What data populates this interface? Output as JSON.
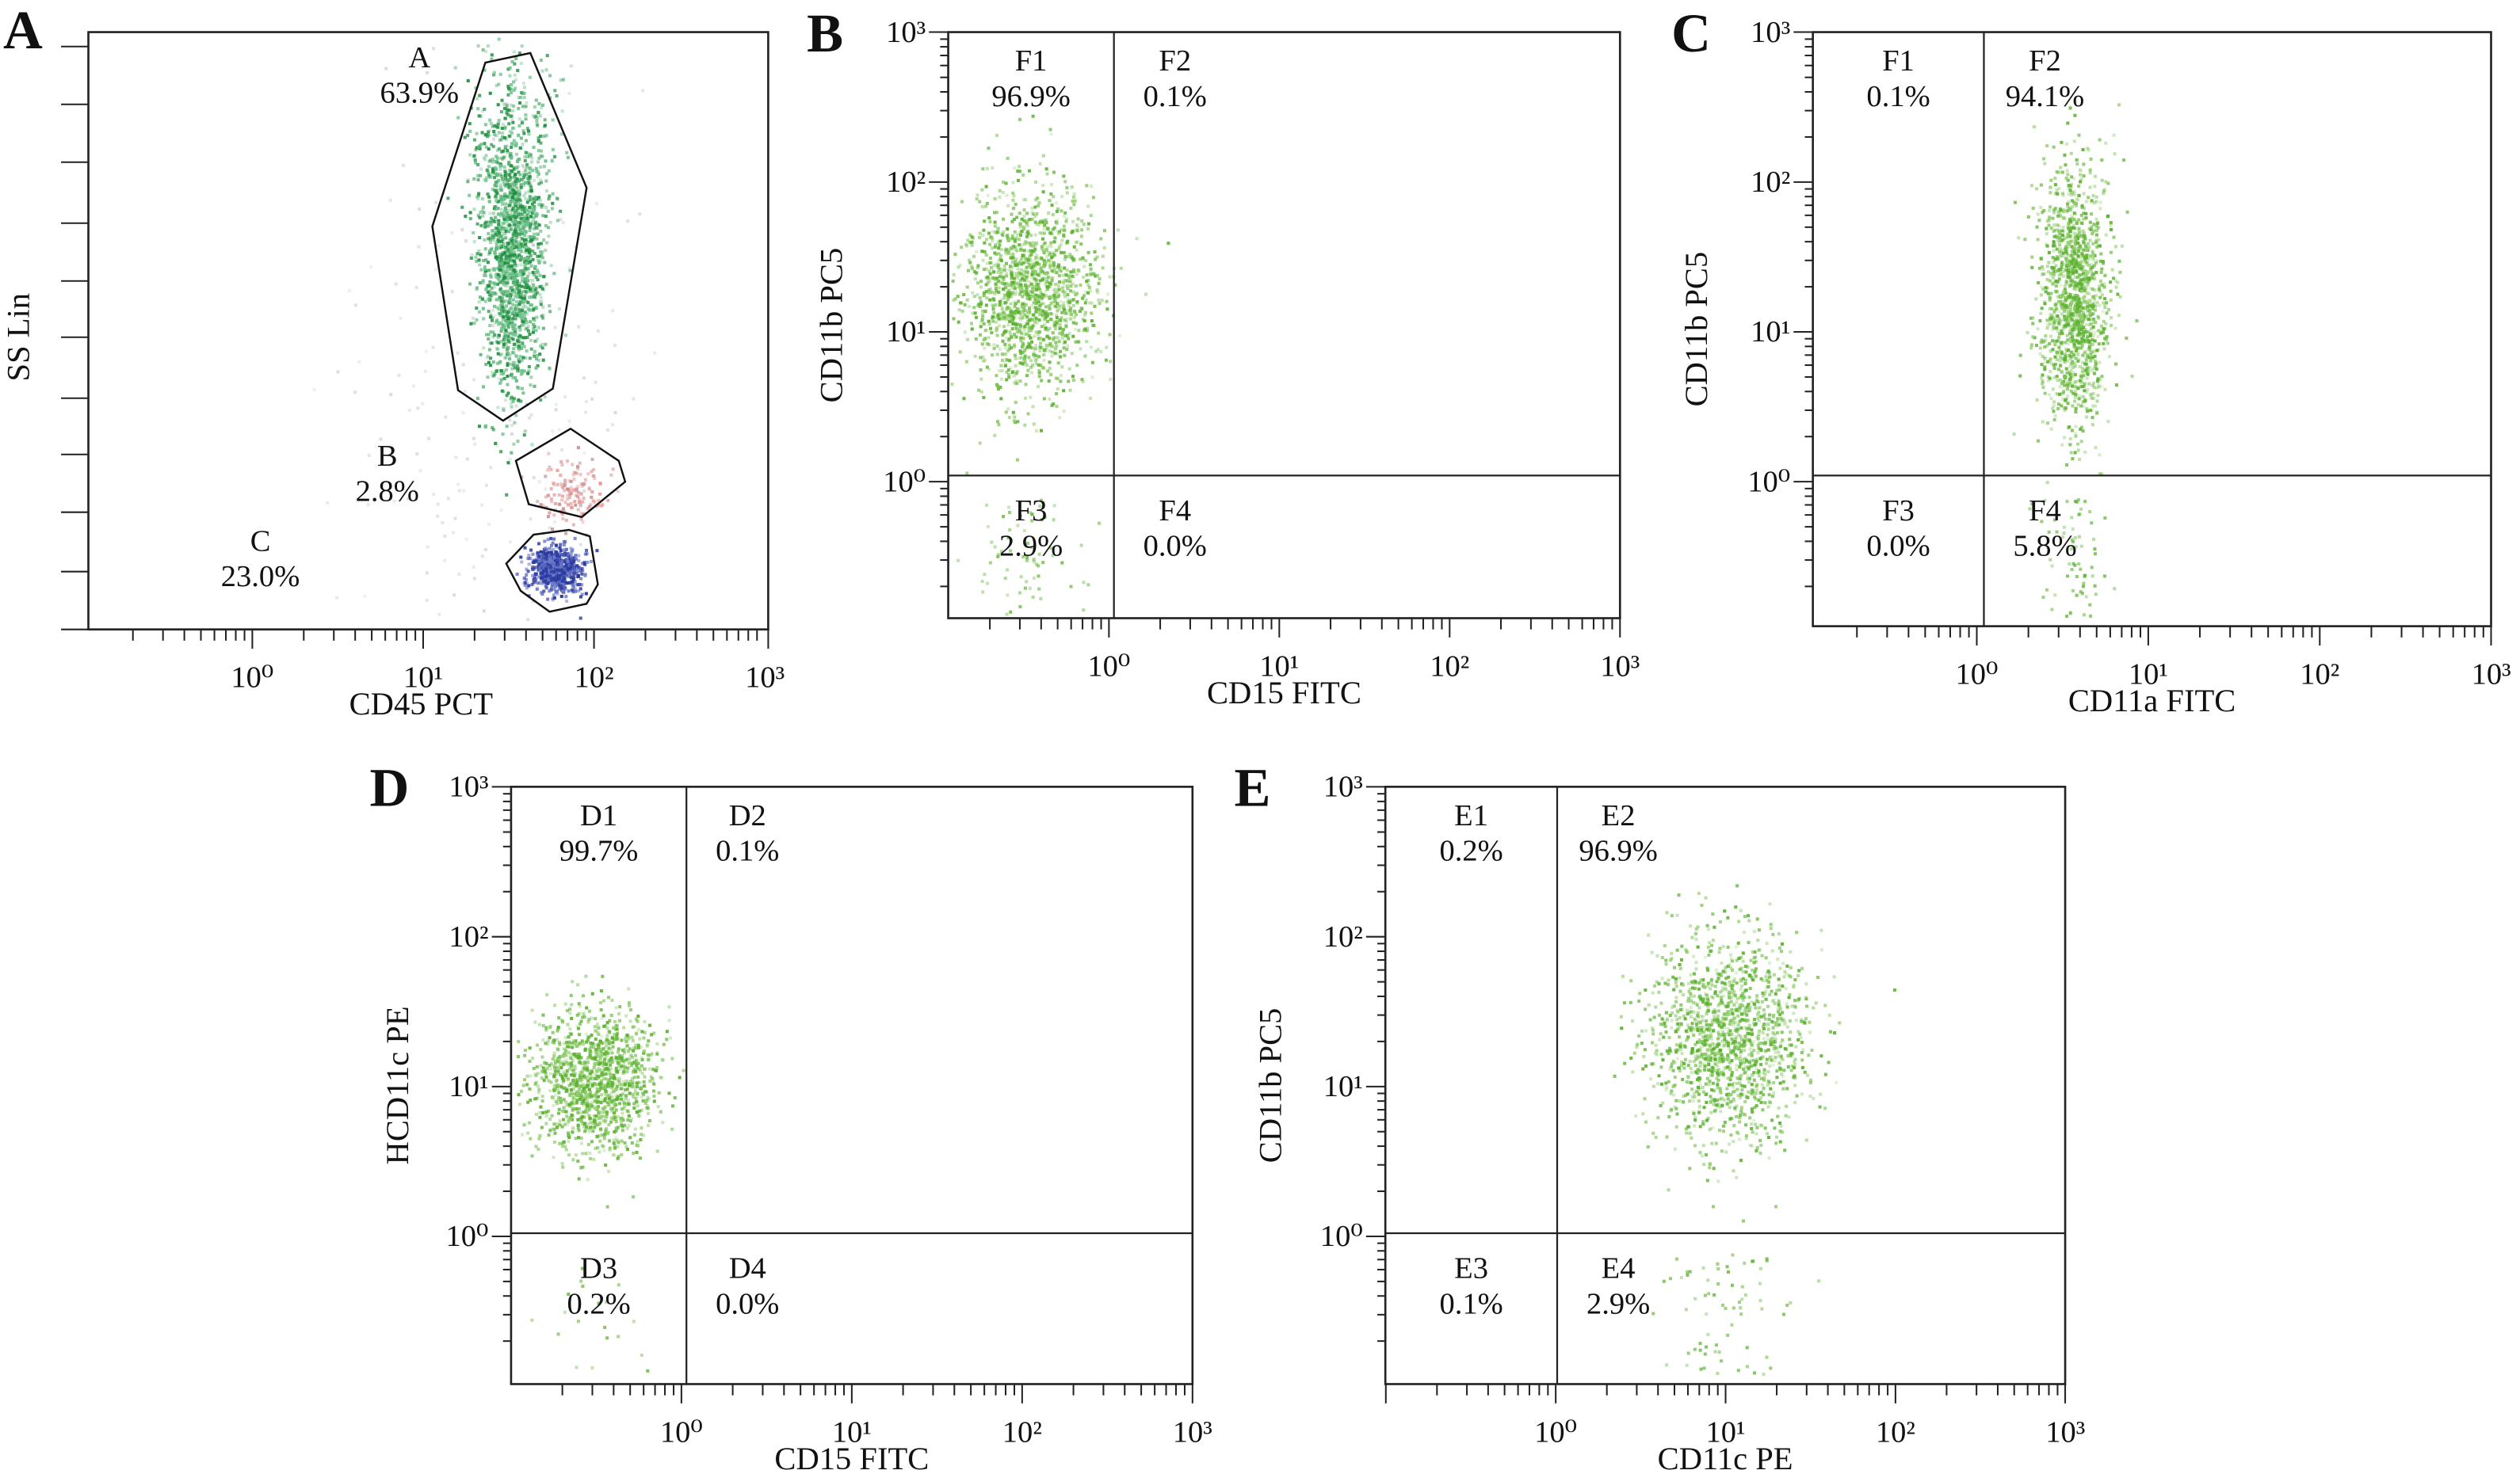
{
  "chart_data": [
    {
      "panel": "A",
      "type": "scatter",
      "xlabel": "CD45 PCT",
      "ylabel": "SS Lin",
      "xscale": "log",
      "xlim": [
        0.11,
        1000
      ],
      "xticks": [
        "10⁰",
        "10¹",
        "10²",
        "10³"
      ],
      "yscale": "linear",
      "gates": [
        {
          "name": "A",
          "percent": "63.9%",
          "color": "#1f8f3e"
        },
        {
          "name": "B",
          "percent": "2.8%",
          "color": "#e58f8f"
        },
        {
          "name": "C",
          "percent": "23.0%",
          "color": "#2b3aa0"
        }
      ]
    },
    {
      "panel": "B",
      "type": "scatter",
      "xlabel": "CD15 FITC",
      "ylabel": "CD11b PC5",
      "xscale": "log",
      "yscale": "log",
      "xlim": [
        0.11,
        1000
      ],
      "ylim": [
        0.12,
        1000
      ],
      "xticks": [
        "10⁰",
        "10¹",
        "10²",
        "10³"
      ],
      "yticks": [
        "10⁰",
        "10¹",
        "10²",
        "10³"
      ],
      "quadrant_threshold": {
        "x": 1.07,
        "y": 1.1
      },
      "quadrants": [
        {
          "name": "F1",
          "percent": "96.9%"
        },
        {
          "name": "F2",
          "percent": "0.1%"
        },
        {
          "name": "F3",
          "percent": "2.9%"
        },
        {
          "name": "F4",
          "percent": "0.0%"
        }
      ],
      "population_center": {
        "x": 0.34,
        "y": 19.5
      },
      "point_color": "#5cb130"
    },
    {
      "panel": "C",
      "type": "scatter",
      "xlabel": "CD11a FITC",
      "ylabel": "CD11b PC5",
      "xscale": "log",
      "yscale": "log",
      "xlim": [
        0.11,
        1000
      ],
      "ylim": [
        0.1,
        1000
      ],
      "xticks": [
        "10⁰",
        "10¹",
        "10²",
        "10³"
      ],
      "yticks": [
        "10⁰",
        "10¹",
        "10²",
        "10³"
      ],
      "quadrant_threshold": {
        "x": 1.1,
        "y": 1.1
      },
      "quadrants": [
        {
          "name": "F1",
          "percent": "0.1%"
        },
        {
          "name": "F2",
          "percent": "94.1%"
        },
        {
          "name": "F3",
          "percent": "0.0%"
        },
        {
          "name": "F4",
          "percent": "5.8%"
        }
      ],
      "population_center": {
        "x": 3.6,
        "y": 17
      },
      "point_color": "#5cb130"
    },
    {
      "panel": "D",
      "type": "scatter",
      "xlabel": "CD15 FITC",
      "ylabel": "HCD11c PE",
      "xscale": "log",
      "yscale": "log",
      "xlim": [
        0.11,
        1000
      ],
      "ylim": [
        0.1,
        1000
      ],
      "xticks": [
        "10⁰",
        "10¹",
        "10²",
        "10³"
      ],
      "yticks": [
        "10⁰",
        "10¹",
        "10²",
        "10³"
      ],
      "quadrant_threshold": {
        "x": 1.07,
        "y": 1.05
      },
      "quadrants": [
        {
          "name": "D1",
          "percent": "99.7%"
        },
        {
          "name": "D2",
          "percent": "0.1%"
        },
        {
          "name": "D3",
          "percent": "0.2%"
        },
        {
          "name": "D4",
          "percent": "0.0%"
        }
      ],
      "population_center": {
        "x": 0.31,
        "y": 11.3
      },
      "point_color": "#5cb130"
    },
    {
      "panel": "E",
      "type": "scatter",
      "xlabel": "CD11c PE",
      "ylabel": "CD11b PC5",
      "xscale": "log",
      "yscale": "log",
      "xlim": [
        0.1,
        1000
      ],
      "ylim": [
        0.1,
        1000
      ],
      "xticks": [
        "10⁰",
        "10¹",
        "10²",
        "10³"
      ],
      "yticks": [
        "10⁰",
        "10¹",
        "10²",
        "10³"
      ],
      "quadrant_threshold": {
        "x": 1.02,
        "y": 1.05
      },
      "quadrants": [
        {
          "name": "E1",
          "percent": "0.2%"
        },
        {
          "name": "E2",
          "percent": "96.9%"
        },
        {
          "name": "E3",
          "percent": "0.1%"
        },
        {
          "name": "E4",
          "percent": "2.9%"
        }
      ],
      "population_center": {
        "x": 10.3,
        "y": 22
      },
      "point_color": "#5cb130"
    }
  ]
}
